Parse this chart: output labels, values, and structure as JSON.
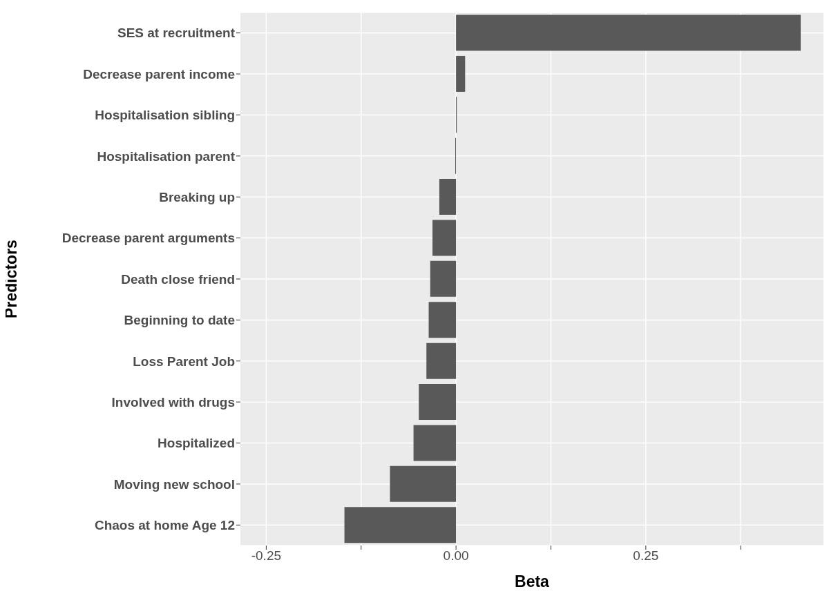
{
  "chart_data": {
    "type": "bar",
    "orientation": "horizontal",
    "xlabel": "Beta",
    "ylabel": "Predictors",
    "categories": [
      "SES at recruitment",
      "Decrease parent income",
      "Hospitalisation sibling",
      "Hospitalisation parent",
      "Breaking up",
      "Decrease parent arguments",
      "Death close friend",
      "Beginning to date",
      "Loss Parent Job",
      "Involved with drugs",
      "Hospitalized",
      "Moving new school",
      "Chaos at home Age 12"
    ],
    "values": [
      0.454,
      0.012,
      0.001,
      -0.001,
      -0.022,
      -0.031,
      -0.034,
      -0.036,
      -0.039,
      -0.049,
      -0.056,
      -0.087,
      -0.147
    ],
    "color": "#595959",
    "xlim": [
      -0.284,
      0.484
    ],
    "xticks": [
      -0.25,
      {
        "value": -0.125,
        "label": null
      },
      {
        "value": 0,
        "label": "0.00"
      },
      {
        "value": 0.125,
        "label": null
      },
      0.25,
      {
        "value": 0.375,
        "label": null
      }
    ],
    "grid": true
  }
}
